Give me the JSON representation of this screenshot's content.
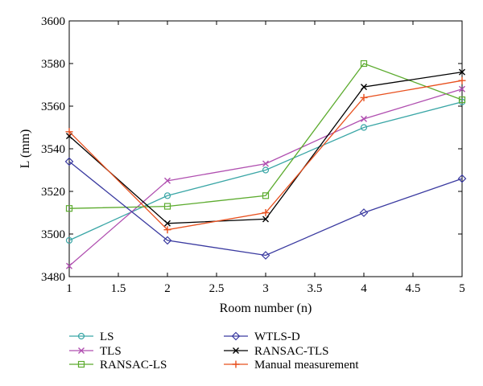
{
  "chart_data": {
    "type": "line",
    "title": "",
    "xlabel": "Room number (n)",
    "ylabel": "L (mm)",
    "xlim": [
      1,
      5
    ],
    "ylim": [
      3480,
      3600
    ],
    "xticks": [
      1,
      1.5,
      2,
      2.5,
      3,
      3.5,
      4,
      4.5,
      5
    ],
    "xtick_labels": [
      "1",
      "1.5",
      "2",
      "2.5",
      "3",
      "3.5",
      "4",
      "4.5",
      "5"
    ],
    "yticks": [
      3480,
      3500,
      3520,
      3540,
      3560,
      3580,
      3600
    ],
    "ytick_labels": [
      "3480",
      "3500",
      "3520",
      "3540",
      "3560",
      "3580",
      "3600"
    ],
    "grid": false,
    "legend_position": "bottom",
    "x": [
      1,
      2,
      3,
      4,
      5
    ],
    "series": [
      {
        "name": "LS",
        "color": "#3aa6a6",
        "marker": "circle",
        "values": [
          3497,
          3518,
          3530,
          3550,
          3562
        ]
      },
      {
        "name": "TLS",
        "color": "#b04fb0",
        "marker": "x",
        "values": [
          3485,
          3525,
          3533,
          3554,
          3568
        ]
      },
      {
        "name": "RANSAC-LS",
        "color": "#5cab2e",
        "marker": "square",
        "values": [
          3512,
          3513,
          3518,
          3580,
          3563
        ]
      },
      {
        "name": "WTLS-D",
        "color": "#3a3aa0",
        "marker": "diamond",
        "values": [
          3534,
          3497,
          3490,
          3510,
          3526
        ]
      },
      {
        "name": "RANSAC-TLS",
        "color": "#000000",
        "marker": "x",
        "values": [
          3546,
          3505,
          3507,
          3569,
          3576
        ]
      },
      {
        "name": "Manual measurement",
        "color": "#e8501e",
        "marker": "plus",
        "values": [
          3548,
          3502,
          3510,
          3564,
          3572
        ]
      }
    ]
  }
}
